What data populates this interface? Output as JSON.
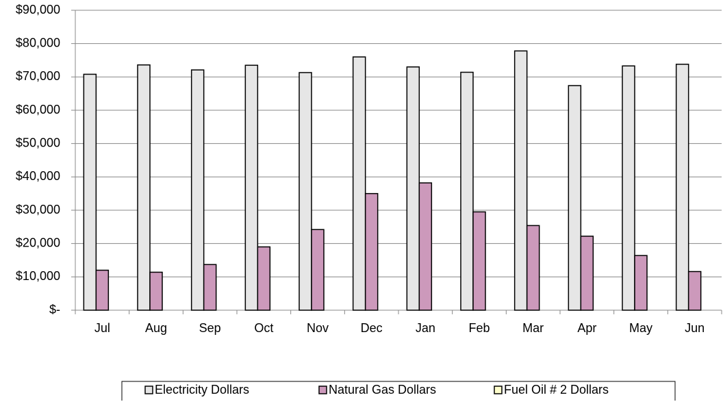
{
  "chart_data": {
    "type": "bar",
    "categories": [
      "Jul",
      "Aug",
      "Sep",
      "Oct",
      "Nov",
      "Dec",
      "Jan",
      "Feb",
      "Mar",
      "Apr",
      "May",
      "Jun"
    ],
    "series": [
      {
        "name": "Electricity Dollars",
        "color": "#e6e6e6",
        "values": [
          70800,
          73600,
          72100,
          73500,
          71300,
          76000,
          73000,
          71400,
          77800,
          67400,
          73300,
          73800
        ]
      },
      {
        "name": "Natural Gas Dollars",
        "color": "#cc99bb",
        "values": [
          12000,
          11400,
          13700,
          19000,
          24200,
          35000,
          38200,
          29500,
          25400,
          22200,
          16400,
          11600
        ]
      },
      {
        "name": "Fuel Oil # 2 Dollars",
        "color": "#ffffcc",
        "values": [
          0,
          0,
          0,
          0,
          0,
          0,
          0,
          0,
          0,
          0,
          0,
          0
        ]
      }
    ],
    "ylim": [
      0,
      90000
    ],
    "yticks": [
      {
        "value": 0,
        "label": "$-"
      },
      {
        "value": 10000,
        "label": "$10,000"
      },
      {
        "value": 20000,
        "label": "$20,000"
      },
      {
        "value": 30000,
        "label": "$30,000"
      },
      {
        "value": 40000,
        "label": "$40,000"
      },
      {
        "value": 50000,
        "label": "$50,000"
      },
      {
        "value": 60000,
        "label": "$60,000"
      },
      {
        "value": 70000,
        "label": "$70,000"
      },
      {
        "value": 80000,
        "label": "$80,000"
      },
      {
        "value": 90000,
        "label": "$90,000"
      }
    ],
    "grid": true,
    "legend": "bottom"
  }
}
